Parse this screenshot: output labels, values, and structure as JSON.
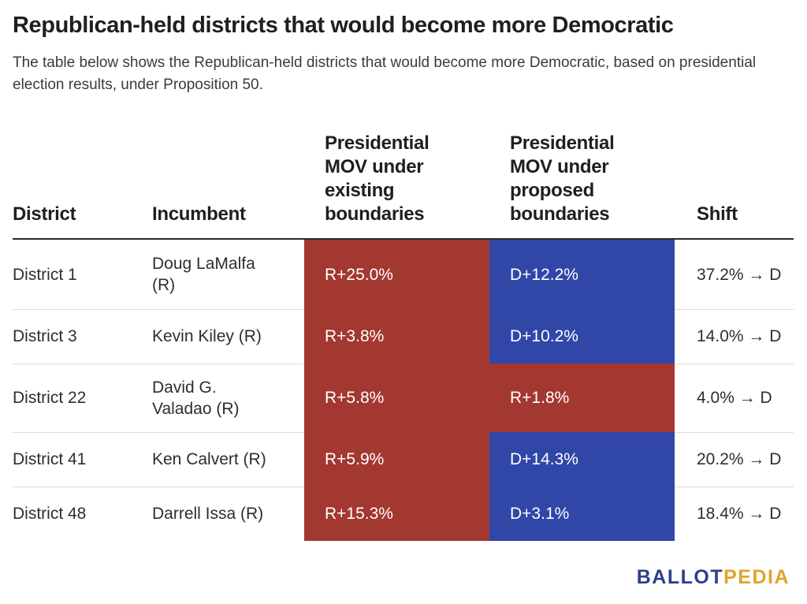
{
  "title": "Republican-held districts that would become more Democratic",
  "subtitle": "The table below shows the Republican-held districts that would become more Democratic, based on presidential election results, under Proposition 50.",
  "colors": {
    "republican": "#a33831",
    "democrat": "#3047a8"
  },
  "chart_data": {
    "type": "table",
    "columns": [
      [
        "District"
      ],
      [
        "Incumbent"
      ],
      [
        "Presidential",
        "MOV under",
        "existing",
        "boundaries"
      ],
      [
        "Presidential",
        "MOV under",
        "proposed",
        "boundaries"
      ],
      [
        "Shift"
      ]
    ],
    "rows": [
      {
        "district": "District 1",
        "incumbent": [
          "Doug LaMalfa",
          "(R)"
        ],
        "existing": "R+25.0%",
        "existing_party": "R",
        "proposed": "D+12.2%",
        "proposed_party": "D",
        "shift": "37.2% → D"
      },
      {
        "district": "District 3",
        "incumbent": [
          "Kevin Kiley (R)"
        ],
        "existing": "R+3.8%",
        "existing_party": "R",
        "proposed": "D+10.2%",
        "proposed_party": "D",
        "shift": "14.0% → D"
      },
      {
        "district": "District 22",
        "incumbent": [
          "David G.",
          "Valadao (R)"
        ],
        "existing": "R+5.8%",
        "existing_party": "R",
        "proposed": "R+1.8%",
        "proposed_party": "R",
        "shift": "4.0% → D"
      },
      {
        "district": "District 41",
        "incumbent": [
          "Ken Calvert (R)"
        ],
        "existing": "R+5.9%",
        "existing_party": "R",
        "proposed": "D+14.3%",
        "proposed_party": "D",
        "shift": "20.2% → D"
      },
      {
        "district": "District 48",
        "incumbent": [
          "Darrell Issa (R)"
        ],
        "existing": "R+15.3%",
        "existing_party": "R",
        "proposed": "D+3.1%",
        "proposed_party": "D",
        "shift": "18.4% → D"
      }
    ]
  },
  "logo": {
    "part1": "BALLOT",
    "part2": "PEDIA"
  }
}
